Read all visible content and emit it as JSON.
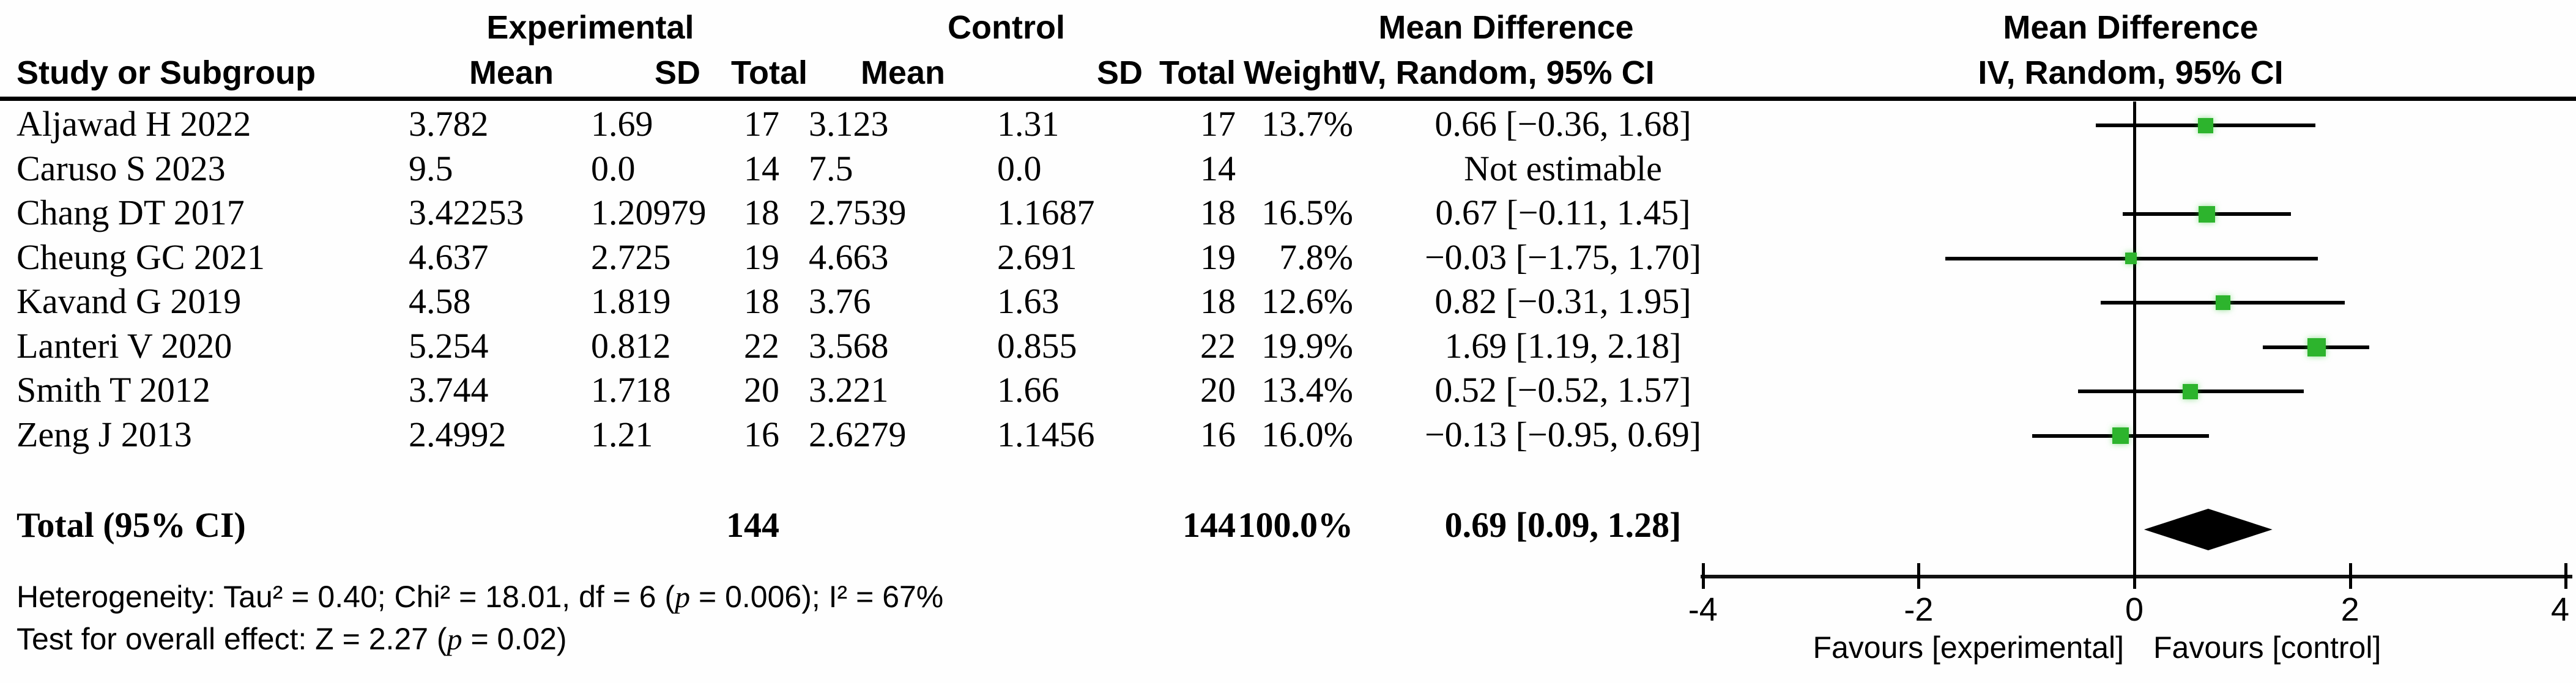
{
  "headers": {
    "group_experimental": "Experimental",
    "group_control": "Control",
    "group_md_text": "Mean Difference",
    "group_md_plot": "Mean Difference",
    "study": "Study or Subgroup",
    "exp_mean": "Mean",
    "exp_sd": "SD",
    "exp_total": "Total",
    "ctl_mean": "Mean",
    "ctl_sd": "SD",
    "ctl_total": "Total",
    "weight": "Weight",
    "method_text": "IV, Random, 95% CI",
    "method_plot": "IV, Random, 95% CI"
  },
  "chart_data": {
    "type": "forest",
    "effect_measure": "Mean Difference",
    "model": "IV, Random, 95% CI",
    "marker_color": "#2DB42D",
    "studies": [
      {
        "name": "Aljawad H 2022",
        "exp_mean": "3.782",
        "exp_sd": "1.69",
        "exp_total": "17",
        "ctl_mean": "3.123",
        "ctl_sd": "1.31",
        "ctl_total": "17",
        "weight": "13.7%",
        "ci_text": "0.66 [−0.36, 1.68]",
        "md": 0.66,
        "ci_low": -0.36,
        "ci_high": 1.68,
        "weight_value": 13.7
      },
      {
        "name": "Caruso S 2023",
        "exp_mean": "9.5",
        "exp_sd": "0.0",
        "exp_total": "14",
        "ctl_mean": "7.5",
        "ctl_sd": "0.0",
        "ctl_total": "14",
        "weight": "",
        "ci_text": "Not estimable",
        "md": null,
        "ci_low": null,
        "ci_high": null,
        "weight_value": null
      },
      {
        "name": "Chang DT 2017",
        "exp_mean": "3.42253",
        "exp_sd": "1.20979",
        "exp_total": "18",
        "ctl_mean": "2.7539",
        "ctl_sd": "1.1687",
        "ctl_total": "18",
        "weight": "16.5%",
        "ci_text": "0.67 [−0.11, 1.45]",
        "md": 0.67,
        "ci_low": -0.11,
        "ci_high": 1.45,
        "weight_value": 16.5
      },
      {
        "name": "Cheung GC 2021",
        "exp_mean": "4.637",
        "exp_sd": "2.725",
        "exp_total": "19",
        "ctl_mean": "4.663",
        "ctl_sd": "2.691",
        "ctl_total": "19",
        "weight": "7.8%",
        "ci_text": "−0.03 [−1.75, 1.70]",
        "md": -0.03,
        "ci_low": -1.75,
        "ci_high": 1.7,
        "weight_value": 7.8
      },
      {
        "name": "Kavand G 2019",
        "exp_mean": "4.58",
        "exp_sd": "1.819",
        "exp_total": "18",
        "ctl_mean": "3.76",
        "ctl_sd": "1.63",
        "ctl_total": "18",
        "weight": "12.6%",
        "ci_text": "0.82 [−0.31, 1.95]",
        "md": 0.82,
        "ci_low": -0.31,
        "ci_high": 1.95,
        "weight_value": 12.6
      },
      {
        "name": "Lanteri V 2020",
        "exp_mean": "5.254",
        "exp_sd": "0.812",
        "exp_total": "22",
        "ctl_mean": "3.568",
        "ctl_sd": "0.855",
        "ctl_total": "22",
        "weight": "19.9%",
        "ci_text": "1.69 [1.19, 2.18]",
        "md": 1.69,
        "ci_low": 1.19,
        "ci_high": 2.18,
        "weight_value": 19.9
      },
      {
        "name": "Smith T 2012",
        "exp_mean": "3.744",
        "exp_sd": "1.718",
        "exp_total": "20",
        "ctl_mean": "3.221",
        "ctl_sd": "1.66",
        "ctl_total": "20",
        "weight": "13.4%",
        "ci_text": "0.52 [−0.52, 1.57]",
        "md": 0.52,
        "ci_low": -0.52,
        "ci_high": 1.57,
        "weight_value": 13.4
      },
      {
        "name": "Zeng J 2013",
        "exp_mean": "2.4992",
        "exp_sd": "1.21",
        "exp_total": "16",
        "ctl_mean": "2.6279",
        "ctl_sd": "1.1456",
        "ctl_total": "16",
        "weight": "16.0%",
        "ci_text": "−0.13 [−0.95, 0.69]",
        "md": -0.13,
        "ci_low": -0.95,
        "ci_high": 0.69,
        "weight_value": 16.0
      }
    ],
    "total": {
      "label": "Total (95% CI)",
      "exp_total": "144",
      "ctl_total": "144",
      "weight": "100.0%",
      "ci_text": "0.69 [0.09, 1.28]",
      "md": 0.69,
      "ci_low": 0.09,
      "ci_high": 1.28
    },
    "axis": {
      "xlim": [
        -4,
        4
      ],
      "ticks": [
        -4,
        -2,
        0,
        2,
        4
      ],
      "tick_labels": [
        "-4",
        "-2",
        "0",
        "2",
        "4"
      ]
    },
    "favours_left": "Favours [experimental]",
    "favours_right": "Favours [control]"
  },
  "footnotes": {
    "het_pre": "Heterogeneity: Tau² = 0.40; Chi² = 18.01, df = 6 (",
    "het_p": "p",
    "het_post": " = 0.006); I² = 67%",
    "ove_pre": "Test for overall effect: Z = 2.27 (",
    "ove_p": "p",
    "ove_post": " = 0.02)"
  }
}
